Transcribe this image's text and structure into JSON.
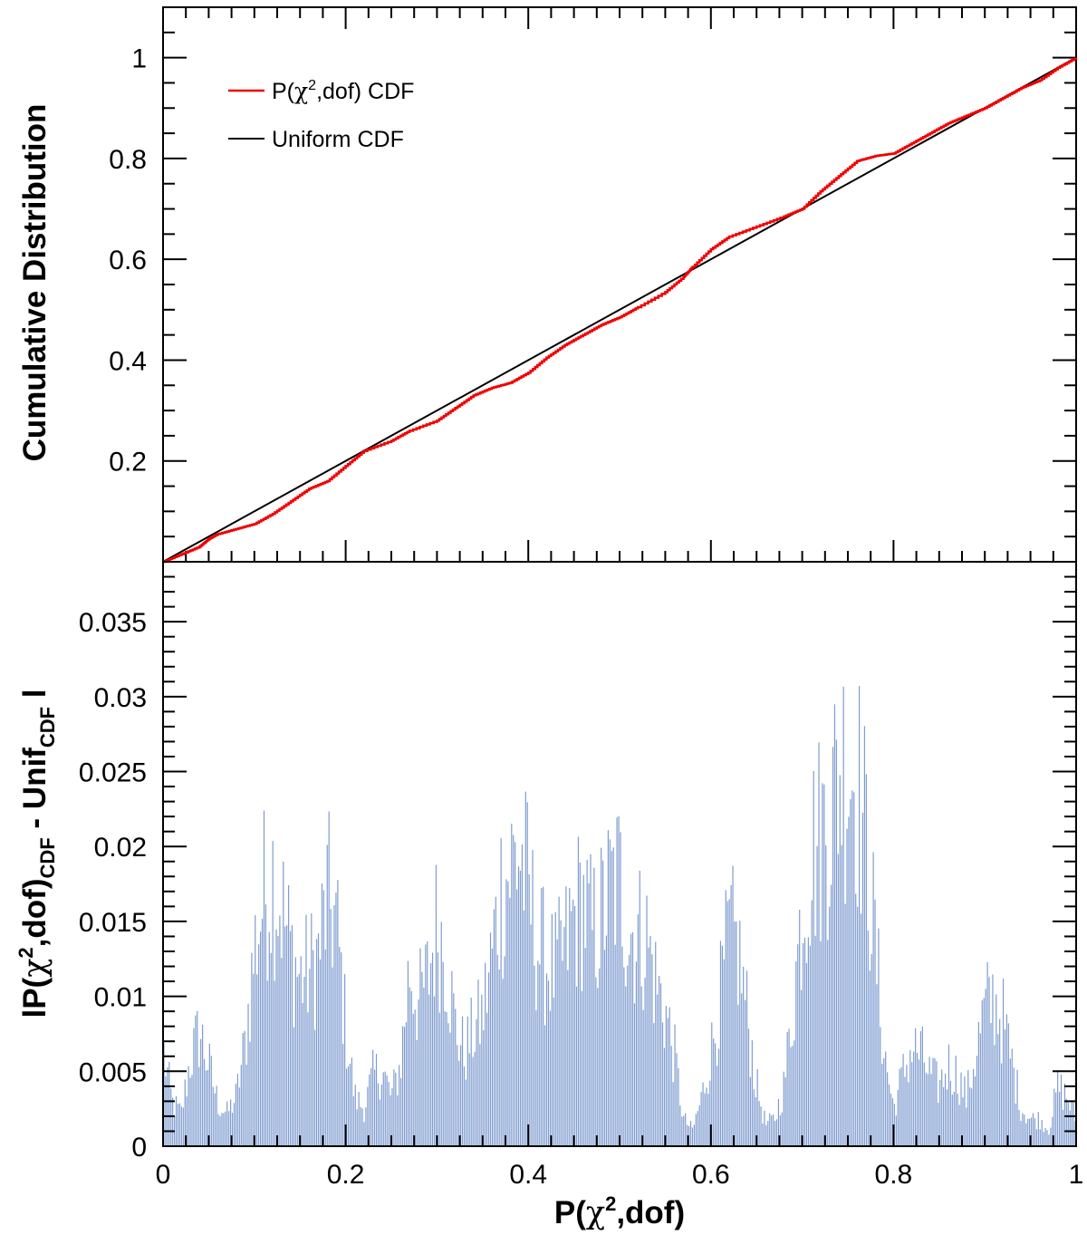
{
  "chart_data": [
    {
      "type": "line",
      "panel": "top",
      "ylabel": "Cumulative Distribution",
      "xlim": [
        0,
        1
      ],
      "ylim": [
        0,
        1.1
      ],
      "yticks": [
        0.2,
        0.4,
        0.6,
        0.8,
        1
      ],
      "ytick_labels": [
        "0.2",
        "0.4",
        "0.6",
        "0.8",
        "1"
      ],
      "grid": false,
      "legend_position": "top-left",
      "legend": [
        {
          "label_pre": "P(",
          "label_sym": "χ",
          "label_sup": "2",
          "label_post": ",dof) CDF",
          "color": "#ee0000"
        },
        {
          "label": "Uniform CDF",
          "color": "#000000"
        }
      ],
      "series": [
        {
          "color": "#ee0000",
          "x": [
            0,
            0.02,
            0.04,
            0.05,
            0.06,
            0.08,
            0.1,
            0.12,
            0.14,
            0.16,
            0.18,
            0.2,
            0.22,
            0.25,
            0.27,
            0.3,
            0.32,
            0.34,
            0.36,
            0.38,
            0.4,
            0.42,
            0.44,
            0.46,
            0.48,
            0.5,
            0.52,
            0.55,
            0.57,
            0.58,
            0.6,
            0.62,
            0.65,
            0.68,
            0.7,
            0.72,
            0.74,
            0.76,
            0.78,
            0.8,
            0.82,
            0.84,
            0.86,
            0.88,
            0.9,
            0.92,
            0.94,
            0.96,
            0.98,
            1
          ],
          "y": [
            0,
            0.015,
            0.03,
            0.045,
            0.055,
            0.065,
            0.075,
            0.095,
            0.12,
            0.145,
            0.16,
            0.19,
            0.22,
            0.24,
            0.26,
            0.28,
            0.305,
            0.33,
            0.345,
            0.355,
            0.375,
            0.405,
            0.43,
            0.45,
            0.47,
            0.485,
            0.505,
            0.535,
            0.565,
            0.585,
            0.62,
            0.645,
            0.665,
            0.685,
            0.7,
            0.735,
            0.765,
            0.795,
            0.805,
            0.81,
            0.83,
            0.85,
            0.87,
            0.885,
            0.9,
            0.92,
            0.94,
            0.955,
            0.98,
            1
          ]
        },
        {
          "color": "#000000",
          "x": [
            0,
            1
          ],
          "y": [
            0,
            1
          ]
        }
      ]
    },
    {
      "type": "bar",
      "panel": "bottom",
      "xlabel_pre": "P(",
      "xlabel_sym": "χ",
      "xlabel_sup": "2",
      "xlabel_post": ",dof)",
      "ylabel_parts": {
        "pre": "lP(",
        "sym": "χ",
        "sup": "2",
        "mid": ",dof)",
        "sub1": "CDF",
        "mid2": " - Unif",
        "sub2": "CDF",
        "post": " l"
      },
      "xlim": [
        0,
        1
      ],
      "ylim": [
        0,
        0.039
      ],
      "xticks": [
        0,
        0.2,
        0.4,
        0.6,
        0.8,
        1
      ],
      "xtick_labels": [
        "0",
        "0.2",
        "0.4",
        "0.6",
        "0.8",
        "1"
      ],
      "yticks": [
        0,
        0.005,
        0.01,
        0.015,
        0.02,
        0.025,
        0.03,
        0.035
      ],
      "ytick_labels": [
        "0",
        "0.005",
        "0.01",
        "0.015",
        "0.02",
        "0.025",
        "0.03",
        "0.035"
      ],
      "grid": false,
      "color": "#7f9ccf",
      "envelope": {
        "x": [
          0,
          0.01,
          0.02,
          0.03,
          0.04,
          0.05,
          0.06,
          0.07,
          0.08,
          0.09,
          0.1,
          0.11,
          0.12,
          0.13,
          0.14,
          0.15,
          0.16,
          0.17,
          0.18,
          0.19,
          0.2,
          0.21,
          0.22,
          0.23,
          0.24,
          0.25,
          0.26,
          0.27,
          0.28,
          0.29,
          0.3,
          0.31,
          0.32,
          0.33,
          0.34,
          0.35,
          0.36,
          0.37,
          0.38,
          0.39,
          0.4,
          0.41,
          0.42,
          0.43,
          0.44,
          0.45,
          0.46,
          0.47,
          0.48,
          0.49,
          0.5,
          0.51,
          0.52,
          0.53,
          0.54,
          0.55,
          0.56,
          0.57,
          0.58,
          0.59,
          0.6,
          0.61,
          0.62,
          0.63,
          0.64,
          0.65,
          0.66,
          0.67,
          0.68,
          0.69,
          0.7,
          0.71,
          0.72,
          0.73,
          0.74,
          0.75,
          0.76,
          0.77,
          0.78,
          0.79,
          0.8,
          0.81,
          0.82,
          0.83,
          0.84,
          0.85,
          0.86,
          0.87,
          0.88,
          0.89,
          0.9,
          0.91,
          0.92,
          0.93,
          0.94,
          0.95,
          0.96,
          0.97,
          0.98,
          0.99,
          1
        ],
        "y": [
          0.009,
          0.004,
          0.003,
          0.008,
          0.0105,
          0.0075,
          0.004,
          0.003,
          0.0045,
          0.0095,
          0.018,
          0.023,
          0.025,
          0.022,
          0.018,
          0.0155,
          0.016,
          0.0175,
          0.0228,
          0.0205,
          0.011,
          0.0045,
          0.0035,
          0.0065,
          0.007,
          0.0045,
          0.0075,
          0.0165,
          0.013,
          0.0155,
          0.0205,
          0.0175,
          0.011,
          0.0085,
          0.0105,
          0.012,
          0.0175,
          0.0235,
          0.0255,
          0.0272,
          0.0235,
          0.0185,
          0.017,
          0.016,
          0.018,
          0.021,
          0.0225,
          0.0195,
          0.021,
          0.0235,
          0.0245,
          0.02,
          0.0195,
          0.019,
          0.015,
          0.0125,
          0.0085,
          0.0025,
          0.0015,
          0.0045,
          0.0085,
          0.0135,
          0.0195,
          0.018,
          0.012,
          0.0055,
          0.002,
          0.0025,
          0.0055,
          0.013,
          0.022,
          0.027,
          0.0285,
          0.0305,
          0.0345,
          0.0355,
          0.034,
          0.028,
          0.0185,
          0.0085,
          0.0035,
          0.0065,
          0.009,
          0.0085,
          0.0065,
          0.0055,
          0.0075,
          0.0065,
          0.0045,
          0.0085,
          0.0125,
          0.0135,
          0.0115,
          0.0075,
          0.0035,
          0.0025,
          0.0025,
          0.0015,
          0.0055,
          0.0045,
          0.0025
        ]
      }
    }
  ]
}
